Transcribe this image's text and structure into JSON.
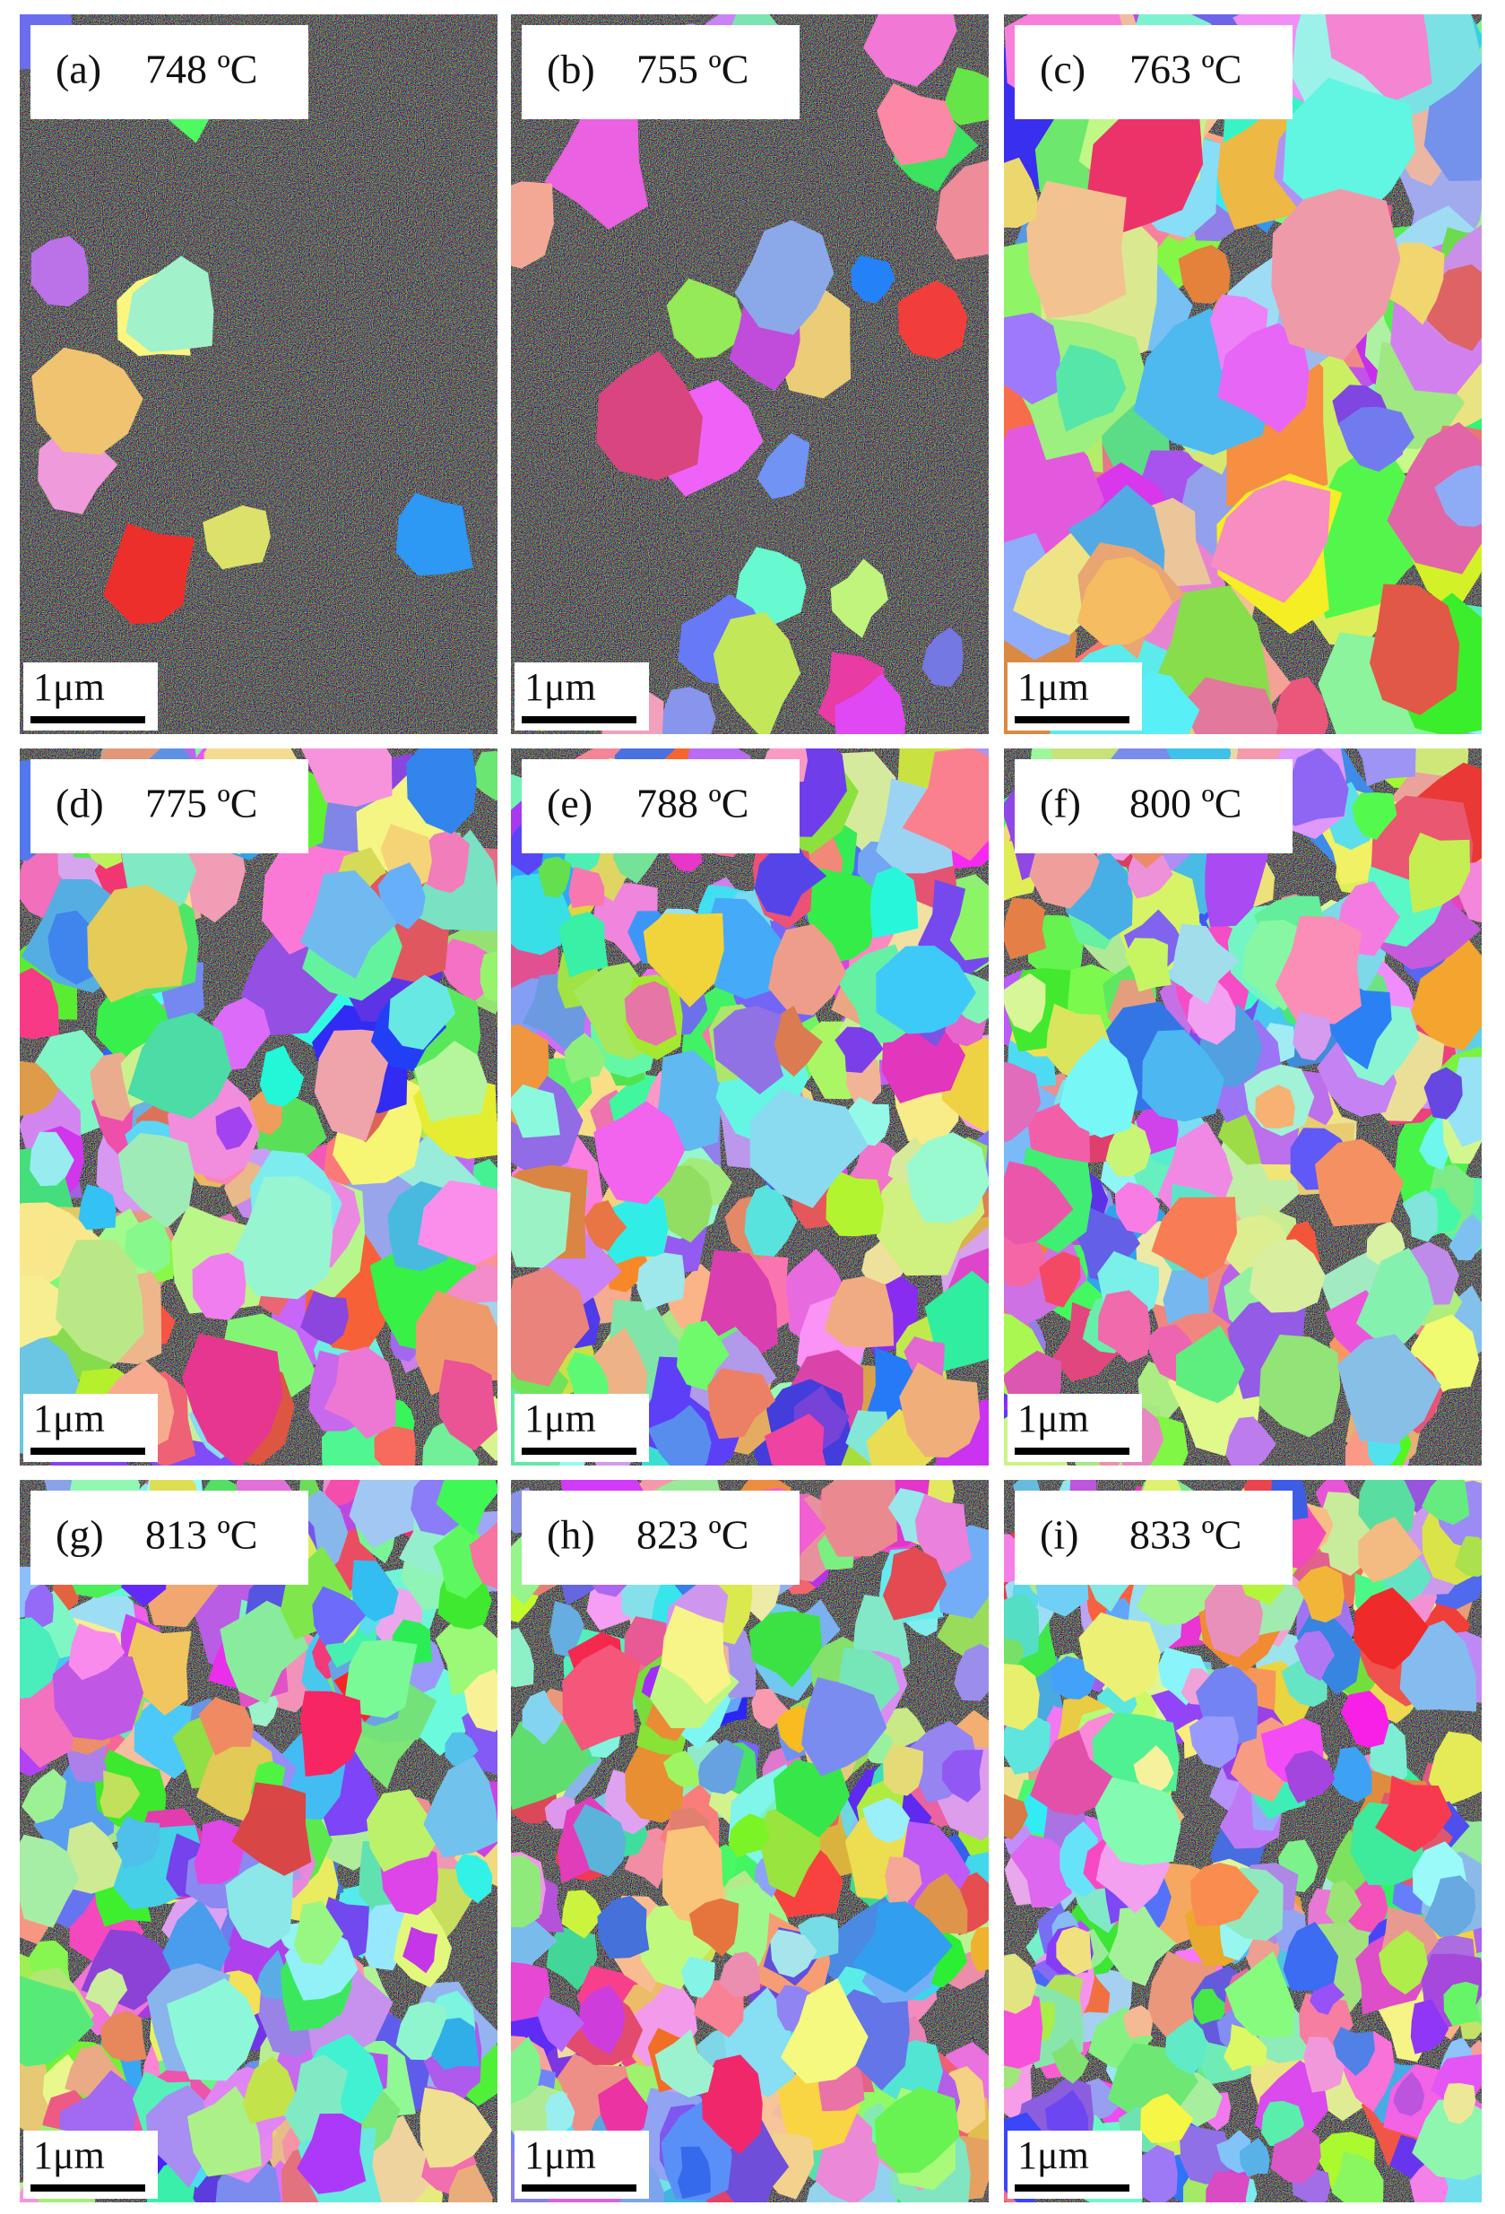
{
  "panels": [
    {
      "label": "(a)",
      "temperature": "748 ºC",
      "scale_bar": "1μm"
    },
    {
      "label": "(b)",
      "temperature": "755 ºC",
      "scale_bar": "1μm"
    },
    {
      "label": "(c)",
      "temperature": "763 ºC",
      "scale_bar": "1μm"
    },
    {
      "label": "(d)",
      "temperature": "775 ºC",
      "scale_bar": "1μm"
    },
    {
      "label": "(e)",
      "temperature": "788 ºC",
      "scale_bar": "1μm"
    },
    {
      "label": "(f)",
      "temperature": "800 ºC",
      "scale_bar": "1μm"
    },
    {
      "label": "(g)",
      "temperature": "813 ºC",
      "scale_bar": "1μm"
    },
    {
      "label": "(h)",
      "temperature": "823 ºC",
      "scale_bar": "1μm"
    },
    {
      "label": "(i)",
      "temperature": "833 ºC",
      "scale_bar": "1μm"
    }
  ]
}
